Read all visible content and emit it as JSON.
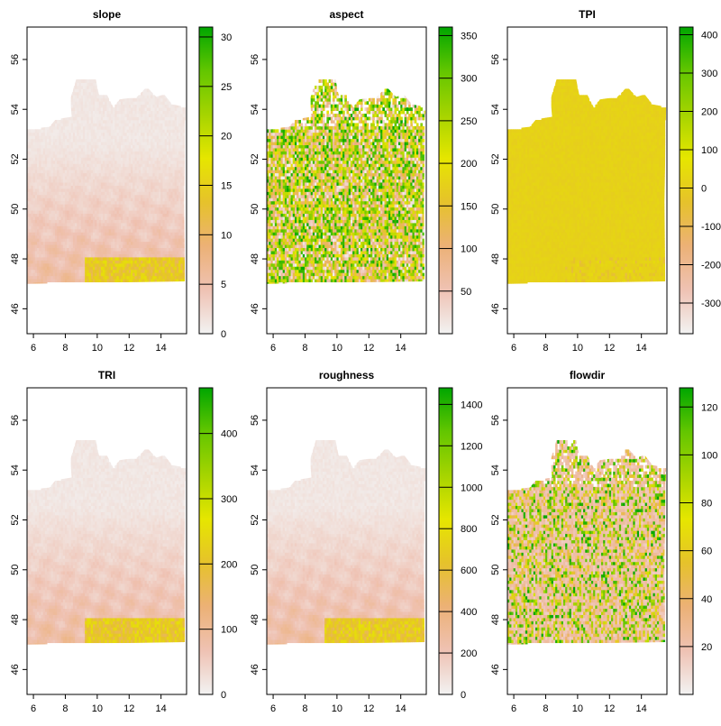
{
  "palette": {
    "ramp": [
      "#F2F2F2",
      "#EFC2B3",
      "#ECB176",
      "#E6C22B",
      "#E6E600",
      "#A6D400",
      "#63C600",
      "#00A600"
    ],
    "frame": "#000000",
    "nodata": "#ffffff"
  },
  "chart_data": [
    {
      "type": "heatmap",
      "title": "slope",
      "x_ticks": [
        6,
        8,
        10,
        12,
        14
      ],
      "y_ticks": [
        46,
        48,
        50,
        52,
        54,
        56
      ],
      "xlim": [
        5.6,
        15.6
      ],
      "ylim": [
        45.0,
        57.3
      ],
      "legend": {
        "min": 0,
        "max": 31,
        "ticks": [
          0,
          5,
          10,
          15,
          20,
          25,
          30
        ]
      },
      "pattern": "low"
    },
    {
      "type": "heatmap",
      "title": "aspect",
      "x_ticks": [
        6,
        8,
        10,
        12,
        14
      ],
      "y_ticks": [
        46,
        48,
        50,
        52,
        54,
        56
      ],
      "xlim": [
        5.6,
        15.6
      ],
      "ylim": [
        45.0,
        57.3
      ],
      "legend": {
        "min": 0,
        "max": 360,
        "ticks": [
          50,
          100,
          150,
          200,
          250,
          300,
          350
        ]
      },
      "pattern": "aspect"
    },
    {
      "type": "heatmap",
      "title": "TPI",
      "x_ticks": [
        6,
        8,
        10,
        12,
        14
      ],
      "y_ticks": [
        46,
        48,
        50,
        52,
        54,
        56
      ],
      "xlim": [
        5.6,
        15.6
      ],
      "ylim": [
        45.0,
        57.3
      ],
      "legend": {
        "min": -380,
        "max": 420,
        "ticks": [
          -300,
          -200,
          -100,
          0,
          100,
          200,
          300,
          400
        ]
      },
      "pattern": "tpi"
    },
    {
      "type": "heatmap",
      "title": "TRI",
      "x_ticks": [
        6,
        8,
        10,
        12,
        14
      ],
      "y_ticks": [
        46,
        48,
        50,
        52,
        54,
        56
      ],
      "xlim": [
        5.6,
        15.6
      ],
      "ylim": [
        45.0,
        57.3
      ],
      "legend": {
        "min": 0,
        "max": 470,
        "ticks": [
          0,
          100,
          200,
          300,
          400
        ]
      },
      "pattern": "low"
    },
    {
      "type": "heatmap",
      "title": "roughness",
      "x_ticks": [
        6,
        8,
        10,
        12,
        14
      ],
      "y_ticks": [
        46,
        48,
        50,
        52,
        54,
        56
      ],
      "xlim": [
        5.6,
        15.6
      ],
      "ylim": [
        45.0,
        57.3
      ],
      "legend": {
        "min": 0,
        "max": 1480,
        "ticks": [
          0,
          200,
          400,
          600,
          800,
          1000,
          1200,
          1400
        ]
      },
      "pattern": "low"
    },
    {
      "type": "heatmap",
      "title": "flowdir",
      "x_ticks": [
        6,
        8,
        10,
        12,
        14
      ],
      "y_ticks": [
        46,
        48,
        50,
        52,
        54,
        56
      ],
      "xlim": [
        5.6,
        15.6
      ],
      "ylim": [
        45.0,
        57.3
      ],
      "legend": {
        "min": 0,
        "max": 128,
        "ticks": [
          20,
          40,
          60,
          80,
          100,
          120
        ]
      },
      "pattern": "flowdir"
    }
  ]
}
